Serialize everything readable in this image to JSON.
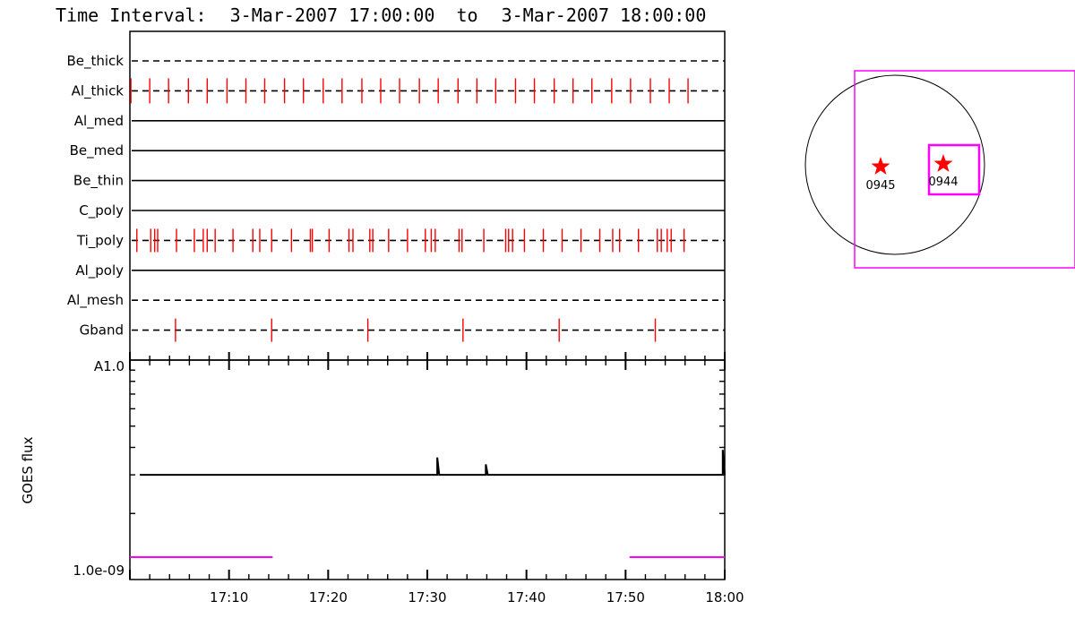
{
  "title": {
    "prefix": "Time Interval:",
    "start": "3-Mar-2007 17:00:00",
    "joiner": "to",
    "end": "3-Mar-2007 18:00:00"
  },
  "colors": {
    "event": "#ff0000",
    "goes": "#000000",
    "coverage": "#ff00ff",
    "axes": "#000000"
  },
  "chart_data": [
    {
      "type": "scatter",
      "description_kind": "filter timeline",
      "x_unit": "minutes after 17:00",
      "xlim": [
        0,
        60
      ],
      "rows": [
        {
          "name": "Be_thick",
          "line": "dashed",
          "events": []
        },
        {
          "name": "Al_thick",
          "line": "dashed",
          "events": [
            0.1,
            2.0,
            3.9,
            5.9,
            7.8,
            9.8,
            11.7,
            13.6,
            15.6,
            17.5,
            19.5,
            21.4,
            23.4,
            25.3,
            27.2,
            29.2,
            31.1,
            33.1,
            35.0,
            36.9,
            38.9,
            40.8,
            42.8,
            44.7,
            46.6,
            48.6,
            50.5,
            52.5,
            54.4,
            56.3
          ]
        },
        {
          "name": "Al_med",
          "line": "solid",
          "events": []
        },
        {
          "name": "Be_med",
          "line": "solid",
          "events": []
        },
        {
          "name": "Be_thin",
          "line": "solid",
          "events": []
        },
        {
          "name": "C_poly",
          "line": "solid",
          "events": []
        },
        {
          "name": "Ti_poly",
          "line": "dashed",
          "events": [
            0.7,
            2.1,
            2.5,
            2.8,
            4.7,
            6.5,
            7.4,
            7.8,
            8.6,
            10.4,
            12.4,
            13.1,
            14.3,
            16.3,
            18.2,
            18.4,
            20.1,
            22.1,
            22.5,
            24.2,
            24.5,
            26.1,
            28.0,
            29.8,
            30.4,
            30.8,
            33.2,
            33.5,
            35.7,
            37.9,
            38.2,
            38.6,
            39.8,
            41.7,
            43.6,
            45.5,
            47.4,
            48.7,
            49.4,
            51.3,
            53.2,
            53.6,
            54.2,
            54.6,
            55.9
          ]
        },
        {
          "name": "Al_poly",
          "line": "solid",
          "events": []
        },
        {
          "name": "Al_mesh",
          "line": "dashed",
          "events": []
        },
        {
          "name": "Gband",
          "line": "dashed",
          "events": [
            4.6,
            14.3,
            24.0,
            33.6,
            43.3,
            53.0
          ]
        }
      ]
    },
    {
      "type": "line",
      "ylabel": "GOES flux",
      "yscale": "log",
      "ytick_labels": [
        "A1.0",
        "1.0e-09"
      ],
      "ylim": [
        1e-09,
        1e-08
      ],
      "xlim": [
        0,
        60
      ],
      "x_unit": "minutes after 17:00",
      "xtick_labels": [
        "17:10",
        "17:20",
        "17:30",
        "17:40",
        "17:50",
        "18:00"
      ],
      "xtick_values": [
        10,
        20,
        30,
        40,
        50,
        60
      ],
      "series": [
        {
          "points": [
            [
              1,
              3e-09
            ],
            [
              31,
              3e-09
            ],
            [
              31,
              3.6e-09
            ],
            [
              31.2,
              3e-09
            ],
            [
              35.9,
              3e-09
            ],
            [
              35.9,
              3.35e-09
            ],
            [
              36.1,
              3e-09
            ],
            [
              59.8,
              3e-09
            ],
            [
              59.8,
              3.9e-09
            ],
            [
              60,
              3e-09
            ]
          ]
        }
      ],
      "coverage_segments": [
        [
          0,
          14.4
        ],
        [
          50.4,
          60
        ]
      ]
    }
  ],
  "solar_map": {
    "markers": [
      {
        "label": "0945"
      },
      {
        "label": "0944"
      }
    ]
  }
}
